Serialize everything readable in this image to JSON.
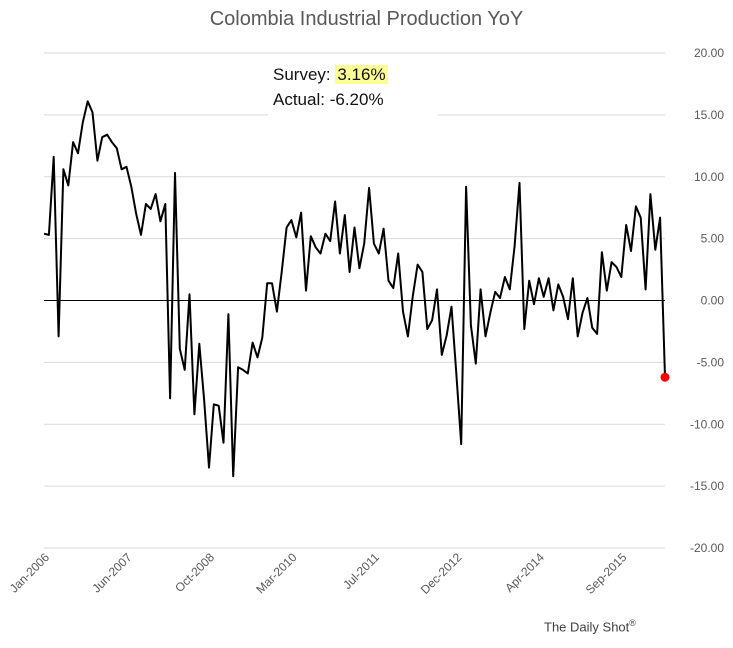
{
  "title": "Colombia Industrial Production YoY",
  "annotation": {
    "survey_label": "Survey:",
    "survey_value": "3.16%",
    "actual_label": "Actual:",
    "actual_value": "-6.20%"
  },
  "footer": {
    "text": "The Daily Shot",
    "mark": "®"
  },
  "colors": {
    "line": "#000000",
    "last_point": "#ff0000",
    "survey_highlight": "#fdfd96"
  },
  "chart_data": {
    "type": "line",
    "title": "Colombia Industrial Production YoY",
    "x_start": "2006-01",
    "x_frequency": "monthly",
    "x_ticks": [
      "Jan-2006",
      "Jun-2007",
      "Oct-2008",
      "Mar-2010",
      "Jul-2011",
      "Dec-2012",
      "Apr-2014",
      "Sep-2015"
    ],
    "y_ticks": [
      "20.00",
      "15.00",
      "10.00",
      "5.00",
      "0.00",
      "-5.00",
      "-10.00",
      "-15.00",
      "-20.00"
    ],
    "ylim": [
      -20,
      20
    ],
    "y_axis_side": "right",
    "grid": "horizontal",
    "series": [
      {
        "values": [
          5.4,
          5.3,
          11.6,
          -2.9,
          10.6,
          9.3,
          12.8,
          11.9,
          14.4,
          16.1,
          15.2,
          11.3,
          13.2,
          13.4,
          12.8,
          12.3,
          10.6,
          10.8,
          9.2,
          7.0,
          5.3,
          7.8,
          7.4,
          8.6,
          6.4,
          7.8,
          -7.9,
          10.3,
          -3.9,
          -5.6,
          0.5,
          -9.2,
          -3.5,
          -8.0,
          -13.5,
          -8.4,
          -8.5,
          -11.5,
          -1.1,
          -14.2,
          -5.4,
          -5.6,
          -5.9,
          -3.4,
          -4.6,
          -3.0,
          1.4,
          1.4,
          -0.9,
          2.3,
          5.9,
          6.5,
          5.1,
          7.1,
          0.8,
          5.2,
          4.3,
          3.8,
          5.4,
          4.8,
          8.0,
          3.8,
          6.9,
          2.3,
          5.9,
          2.6,
          4.6,
          9.1,
          4.6,
          3.8,
          5.8,
          1.6,
          1.0,
          3.8,
          -0.9,
          -2.9,
          0.3,
          2.9,
          2.3,
          -2.3,
          -1.6,
          0.9,
          -4.4,
          -2.8,
          -0.5,
          -6.0,
          -11.6,
          9.2,
          -2.0,
          -5.1,
          0.9,
          -2.9,
          -1.0,
          0.7,
          0.2,
          1.9,
          0.9,
          4.4,
          9.5,
          -2.3,
          1.6,
          -0.3,
          1.8,
          0.3,
          1.8,
          -0.8,
          1.3,
          0.3,
          -1.5,
          1.8,
          -2.9,
          -1.0,
          0.2,
          -2.2,
          -2.7,
          3.9,
          0.8,
          3.1,
          2.7,
          1.9,
          6.1,
          4.0,
          7.6,
          6.7,
          0.9,
          8.6,
          4.1,
          6.7,
          -6.2
        ]
      }
    ]
  }
}
